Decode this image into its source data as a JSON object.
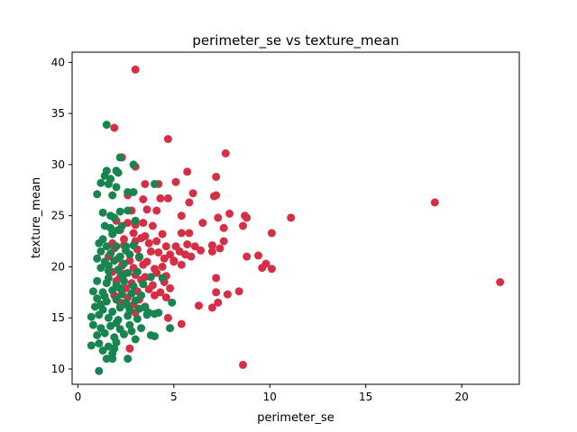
{
  "chart_data": {
    "type": "scatter",
    "title": "perimeter_se vs texture_mean",
    "xlabel": "perimeter_se",
    "ylabel": "texture_mean",
    "xlim": [
      -0.3,
      23.0
    ],
    "ylim": [
      8.5,
      41.0
    ],
    "xticks": [
      0,
      5,
      10,
      15,
      20
    ],
    "yticks": [
      10,
      15,
      20,
      25,
      30,
      35,
      40
    ],
    "grid": false,
    "colors": {
      "red": "#d62f45",
      "green": "#18844f"
    },
    "series": [
      {
        "color": "#d62f45",
        "points": [
          [
            3.0,
            39.3
          ],
          [
            1.9,
            33.6
          ],
          [
            4.7,
            32.5
          ],
          [
            7.7,
            31.1
          ],
          [
            2.3,
            30.7
          ],
          [
            3.0,
            29.8
          ],
          [
            5.7,
            29.3
          ],
          [
            7.2,
            28.8
          ],
          [
            3.5,
            28.1
          ],
          [
            4.2,
            28.1
          ],
          [
            5.1,
            28.3
          ],
          [
            2.6,
            27.0
          ],
          [
            6.0,
            27.2
          ],
          [
            7.1,
            26.9
          ],
          [
            7.2,
            27.0
          ],
          [
            3.4,
            26.6
          ],
          [
            4.3,
            26.7
          ],
          [
            4.7,
            26.7
          ],
          [
            5.8,
            26.3
          ],
          [
            2.8,
            25.5
          ],
          [
            3.6,
            25.6
          ],
          [
            4.1,
            25.5
          ],
          [
            5.4,
            25.0
          ],
          [
            7.3,
            24.8
          ],
          [
            7.9,
            25.2
          ],
          [
            8.7,
            25.0
          ],
          [
            8.8,
            24.8
          ],
          [
            11.1,
            24.8
          ],
          [
            2.0,
            24.5
          ],
          [
            2.6,
            24.3
          ],
          [
            3.0,
            24.1
          ],
          [
            3.4,
            24.3
          ],
          [
            3.9,
            24.0
          ],
          [
            6.5,
            24.3
          ],
          [
            7.6,
            23.8
          ],
          [
            8.6,
            24.0
          ],
          [
            2.2,
            23.6
          ],
          [
            2.9,
            23.3
          ],
          [
            3.5,
            23.0
          ],
          [
            4.4,
            23.2
          ],
          [
            5.4,
            23.3
          ],
          [
            5.8,
            23.3
          ],
          [
            10.1,
            23.3
          ],
          [
            2.4,
            22.7
          ],
          [
            3.0,
            22.5
          ],
          [
            3.3,
            22.8
          ],
          [
            3.7,
            22.3
          ],
          [
            4.1,
            22.5
          ],
          [
            4.6,
            22.0
          ],
          [
            5.1,
            22.0
          ],
          [
            5.7,
            22.2
          ],
          [
            6.1,
            22.0
          ],
          [
            7.0,
            22.1
          ],
          [
            7.6,
            22.5
          ],
          [
            1.9,
            21.8
          ],
          [
            2.5,
            21.6
          ],
          [
            3.1,
            21.7
          ],
          [
            3.8,
            21.5
          ],
          [
            4.2,
            21.4
          ],
          [
            4.8,
            21.2
          ],
          [
            5.3,
            21.5
          ],
          [
            6.4,
            21.6
          ],
          [
            7.0,
            21.5
          ],
          [
            7.4,
            21.8
          ],
          [
            1.6,
            21.0
          ],
          [
            2.1,
            20.8
          ],
          [
            2.7,
            20.6
          ],
          [
            3.2,
            20.9
          ],
          [
            3.6,
            20.5
          ],
          [
            4.5,
            20.8
          ],
          [
            5.0,
            20.5
          ],
          [
            5.6,
            21.2
          ],
          [
            5.9,
            21.0
          ],
          [
            8.8,
            21.0
          ],
          [
            9.4,
            21.1
          ],
          [
            2.3,
            20.1
          ],
          [
            2.9,
            19.9
          ],
          [
            3.4,
            20.2
          ],
          [
            4.0,
            19.8
          ],
          [
            4.4,
            20.0
          ],
          [
            5.0,
            20.6
          ],
          [
            5.4,
            20.2
          ],
          [
            9.6,
            19.9
          ],
          [
            9.8,
            20.3
          ],
          [
            10.1,
            19.8
          ],
          [
            1.8,
            19.5
          ],
          [
            2.4,
            19.3
          ],
          [
            3.0,
            19.2
          ],
          [
            3.5,
            19.0
          ],
          [
            4.1,
            19.4
          ],
          [
            4.6,
            19.1
          ],
          [
            7.2,
            18.9
          ],
          [
            2.0,
            18.6
          ],
          [
            2.8,
            18.4
          ],
          [
            3.3,
            18.7
          ],
          [
            3.9,
            18.2
          ],
          [
            4.5,
            18.5
          ],
          [
            2.5,
            17.9
          ],
          [
            3.1,
            17.6
          ],
          [
            3.7,
            17.8
          ],
          [
            4.3,
            17.5
          ],
          [
            4.8,
            17.9
          ],
          [
            7.2,
            17.5
          ],
          [
            7.8,
            17.3
          ],
          [
            8.4,
            17.6
          ],
          [
            1.9,
            17.2
          ],
          [
            2.6,
            17.0
          ],
          [
            3.2,
            16.8
          ],
          [
            4.0,
            17.2
          ],
          [
            4.6,
            17.0
          ],
          [
            7.3,
            16.5
          ],
          [
            2.2,
            16.5
          ],
          [
            2.9,
            16.3
          ],
          [
            3.5,
            16.1
          ],
          [
            6.3,
            16.2
          ],
          [
            7.0,
            16.0
          ],
          [
            3.0,
            15.5
          ],
          [
            4.7,
            15.0
          ],
          [
            5.4,
            14.4
          ],
          [
            2.7,
            12.0
          ],
          [
            8.6,
            10.4
          ],
          [
            18.6,
            26.3
          ],
          [
            22.0,
            18.5
          ],
          [
            1.8,
            22.3
          ],
          [
            2.4,
            22.1
          ],
          [
            2.2,
            19.0
          ]
        ]
      },
      {
        "color": "#18844f",
        "points": [
          [
            1.5,
            33.9
          ],
          [
            2.2,
            30.7
          ],
          [
            2.9,
            30.0
          ],
          [
            1.5,
            29.4
          ],
          [
            2.0,
            29.4
          ],
          [
            1.4,
            28.9
          ],
          [
            1.7,
            28.6
          ],
          [
            2.1,
            29.2
          ],
          [
            1.2,
            28.2
          ],
          [
            1.6,
            28.1
          ],
          [
            2.0,
            27.8
          ],
          [
            4.0,
            28.1
          ],
          [
            1.0,
            27.1
          ],
          [
            1.8,
            27.0
          ],
          [
            2.6,
            27.3
          ],
          [
            2.9,
            27.3
          ],
          [
            1.3,
            25.3
          ],
          [
            1.7,
            25.0
          ],
          [
            2.2,
            25.4
          ],
          [
            2.6,
            25.5
          ],
          [
            1.9,
            24.8
          ],
          [
            3.0,
            24.5
          ],
          [
            1.4,
            24.0
          ],
          [
            2.3,
            24.0
          ],
          [
            1.8,
            23.2
          ],
          [
            2.1,
            23.6
          ],
          [
            1.1,
            22.3
          ],
          [
            1.5,
            22.0
          ],
          [
            2.0,
            22.0
          ],
          [
            2.5,
            22.0
          ],
          [
            2.9,
            22.1
          ],
          [
            1.2,
            21.5
          ],
          [
            1.7,
            21.3
          ],
          [
            2.2,
            21.0
          ],
          [
            2.7,
            21.2
          ],
          [
            1.0,
            20.8
          ],
          [
            1.4,
            20.5
          ],
          [
            1.9,
            20.6
          ],
          [
            2.4,
            20.3
          ],
          [
            3.2,
            21.0
          ],
          [
            1.2,
            19.9
          ],
          [
            1.6,
            19.6
          ],
          [
            2.1,
            19.7
          ],
          [
            2.6,
            19.4
          ],
          [
            3.1,
            19.5
          ],
          [
            3.8,
            19.0
          ],
          [
            4.4,
            18.9
          ],
          [
            1.0,
            18.6
          ],
          [
            1.5,
            18.4
          ],
          [
            2.0,
            18.2
          ],
          [
            2.4,
            18.6
          ],
          [
            2.9,
            18.1
          ],
          [
            3.4,
            18.3
          ],
          [
            0.8,
            17.6
          ],
          [
            1.3,
            17.5
          ],
          [
            1.8,
            17.7
          ],
          [
            2.3,
            17.3
          ],
          [
            2.8,
            17.4
          ],
          [
            3.3,
            17.2
          ],
          [
            1.0,
            16.9
          ],
          [
            1.5,
            16.6
          ],
          [
            2.0,
            16.8
          ],
          [
            2.5,
            16.5
          ],
          [
            3.0,
            16.7
          ],
          [
            4.9,
            16.5
          ],
          [
            0.9,
            16.1
          ],
          [
            1.3,
            15.8
          ],
          [
            1.8,
            15.6
          ],
          [
            2.2,
            16.0
          ],
          [
            2.7,
            15.7
          ],
          [
            3.2,
            15.9
          ],
          [
            0.7,
            15.1
          ],
          [
            1.1,
            15.3
          ],
          [
            1.6,
            15.0
          ],
          [
            2.1,
            14.8
          ],
          [
            2.6,
            15.2
          ],
          [
            3.1,
            14.9
          ],
          [
            3.6,
            15.3
          ],
          [
            4.0,
            15.4
          ],
          [
            4.2,
            15.5
          ],
          [
            0.8,
            14.3
          ],
          [
            1.2,
            14.0
          ],
          [
            1.7,
            14.2
          ],
          [
            2.2,
            13.9
          ],
          [
            2.7,
            14.3
          ],
          [
            3.3,
            14.0
          ],
          [
            4.8,
            14.0
          ],
          [
            1.0,
            13.3
          ],
          [
            1.4,
            13.5
          ],
          [
            1.9,
            13.1
          ],
          [
            2.4,
            13.4
          ],
          [
            3.0,
            12.9
          ],
          [
            3.8,
            13.3
          ],
          [
            4.0,
            13.2
          ],
          [
            0.7,
            12.3
          ],
          [
            1.1,
            12.5
          ],
          [
            1.6,
            12.2
          ],
          [
            2.0,
            12.6
          ],
          [
            1.3,
            11.8
          ],
          [
            1.8,
            11.5
          ],
          [
            1.5,
            11.0
          ],
          [
            1.8,
            11.0
          ],
          [
            2.6,
            11.0
          ],
          [
            1.1,
            9.8
          ],
          [
            1.6,
            20.1
          ],
          [
            2.3,
            19.1
          ],
          [
            1.4,
            17.1
          ],
          [
            2.0,
            14.5
          ],
          [
            1.2,
            16.3
          ],
          [
            2.5,
            21.6
          ],
          [
            1.7,
            23.8
          ],
          [
            3.5,
            16.0
          ],
          [
            1.9,
            12.0
          ],
          [
            2.8,
            13.7
          ],
          [
            1.3,
            22.7
          ],
          [
            2.2,
            17.9
          ],
          [
            1.6,
            18.9
          ],
          [
            3.7,
            15.5
          ],
          [
            2.6,
            16.2
          ]
        ]
      }
    ]
  }
}
